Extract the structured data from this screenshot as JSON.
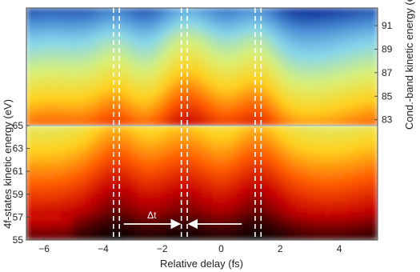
{
  "chart_data": {
    "type": "heatmap",
    "panels": [
      {
        "name": "lower",
        "ylabel": "4f-states kinetic energy (eV)",
        "y_ticks": [
          55,
          57,
          59,
          61,
          63,
          65
        ],
        "ylim": [
          55,
          65
        ]
      },
      {
        "name": "upper",
        "ylabel": "Cond.-band kinetic energy (eV)",
        "y_ticks": [
          83,
          85,
          87,
          89,
          91
        ],
        "ylim": [
          82.5,
          92.5
        ]
      }
    ],
    "xlabel": "Relative delay (fs)",
    "x_ticks": [
      -6,
      -4,
      -2,
      0,
      2,
      4
    ],
    "xlim": [
      -6.6,
      5.3
    ],
    "dashed_lines_x": [
      -3.65,
      -3.45,
      -1.35,
      -1.15,
      1.15,
      1.35
    ],
    "annotation": {
      "label": "Δt",
      "arrow_left": {
        "from": -3.3,
        "to": -1.4
      },
      "arrow_right": {
        "from": 0.7,
        "to": -1.1
      },
      "y_value": 56.4
    },
    "colormap": [
      "#000000",
      "#4a0000",
      "#c40000",
      "#ff5a00",
      "#ffd21e",
      "#d7f07a",
      "#86d6ec",
      "#4a8fd5",
      "#12389e",
      "#04124a"
    ]
  }
}
